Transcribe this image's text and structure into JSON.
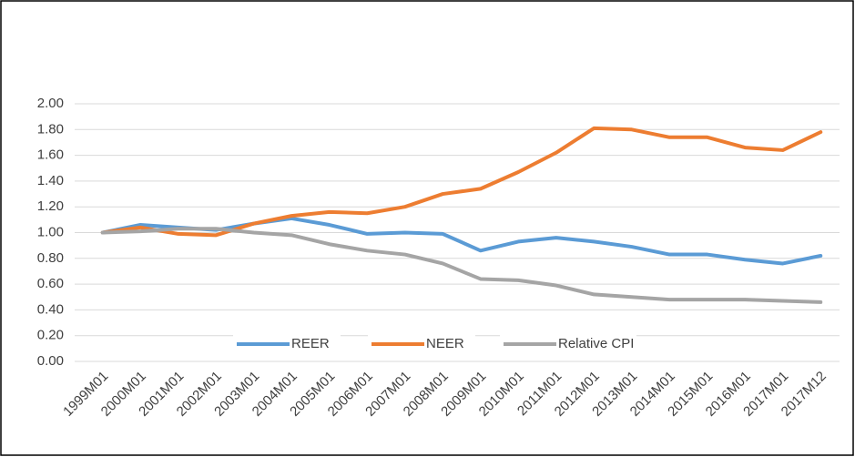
{
  "chart_data": {
    "type": "line",
    "categories": [
      "1999M01",
      "2000M01",
      "2001M01",
      "2002M01",
      "2003M01",
      "2004M01",
      "2005M01",
      "2006M01",
      "2007M01",
      "2008M01",
      "2009M01",
      "2010M01",
      "2011M01",
      "2012M01",
      "2013M01",
      "2014M01",
      "2015M01",
      "2016M01",
      "2017M01",
      "2017M12"
    ],
    "series": [
      {
        "name": "REER",
        "color": "#5b9bd5",
        "values": [
          1.0,
          1.06,
          1.04,
          1.02,
          1.07,
          1.11,
          1.06,
          0.99,
          1.0,
          0.99,
          0.86,
          0.93,
          0.96,
          0.93,
          0.89,
          0.83,
          0.83,
          0.79,
          0.76,
          0.82
        ]
      },
      {
        "name": "NEER",
        "color": "#ed7d31",
        "values": [
          1.0,
          1.04,
          0.99,
          0.98,
          1.07,
          1.13,
          1.16,
          1.15,
          1.2,
          1.3,
          1.34,
          1.47,
          1.62,
          1.81,
          1.8,
          1.74,
          1.74,
          1.66,
          1.64,
          1.78
        ]
      },
      {
        "name": "Relative CPI",
        "color": "#a5a5a5",
        "values": [
          1.0,
          1.01,
          1.03,
          1.03,
          1.0,
          0.98,
          0.91,
          0.86,
          0.83,
          0.76,
          0.64,
          0.63,
          0.59,
          0.52,
          0.5,
          0.48,
          0.48,
          0.48,
          0.47,
          0.46
        ]
      }
    ],
    "ylim": [
      0,
      2
    ],
    "yticks": [
      {
        "value": 0,
        "label": "0.00"
      },
      {
        "value": 0.2,
        "label": "0.20"
      },
      {
        "value": 0.4,
        "label": "0.40"
      },
      {
        "value": 0.6,
        "label": "0.60"
      },
      {
        "value": 0.8,
        "label": "0.80"
      },
      {
        "value": 1,
        "label": "1.00"
      },
      {
        "value": 1.2,
        "label": "1.20"
      },
      {
        "value": 1.4,
        "label": "1.40"
      },
      {
        "value": 1.6,
        "label": "1.60"
      },
      {
        "value": 1.8,
        "label": "1.80"
      },
      {
        "value": 2,
        "label": "2.00"
      }
    ],
    "grid": true,
    "legend": "bottom"
  }
}
